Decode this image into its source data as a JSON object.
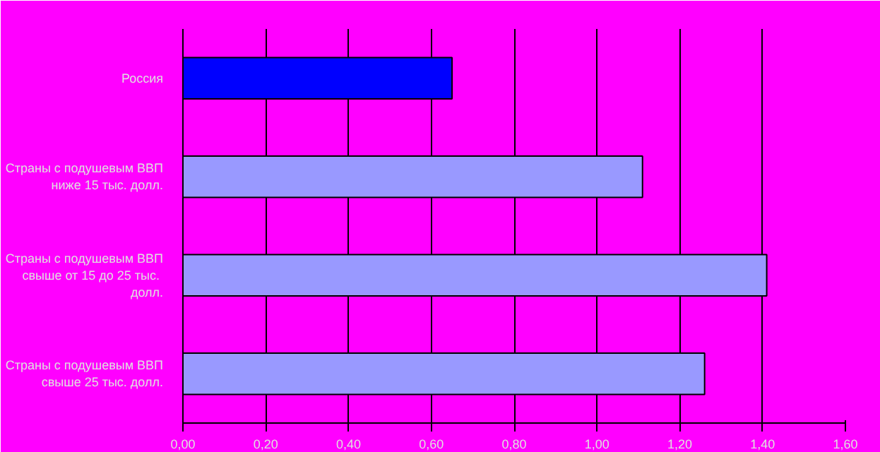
{
  "chart_data": {
    "type": "bar",
    "orientation": "horizontal",
    "categories": [
      "Россия",
      "Страны с подушевым ВВП\nниже 15 тыс. долл.",
      "Страны с подушевым ВВП\nсвыше от 15 до 25  тыс.\nдолл.",
      "Страны с подушевым ВВП\nсвыше 25 тыс. долл."
    ],
    "values": [
      0.65,
      1.11,
      1.41,
      1.26
    ],
    "colors": [
      "#0000ff",
      "#9999ff",
      "#9999ff",
      "#9999ff"
    ],
    "xlim": [
      0,
      1.6
    ],
    "xticks": [
      {
        "value": 0,
        "label": "0,00"
      },
      {
        "value": 0.2,
        "label": "0,20"
      },
      {
        "value": 0.4,
        "label": "0,40"
      },
      {
        "value": 0.6,
        "label": "0,60"
      },
      {
        "value": 0.8,
        "label": "0,80"
      },
      {
        "value": 1.0,
        "label": "1,00"
      },
      {
        "value": 1.2,
        "label": "1,20"
      },
      {
        "value": 1.4,
        "label": "1,40"
      },
      {
        "value": 1.6,
        "label": "1,60"
      }
    ],
    "grid": "x"
  }
}
